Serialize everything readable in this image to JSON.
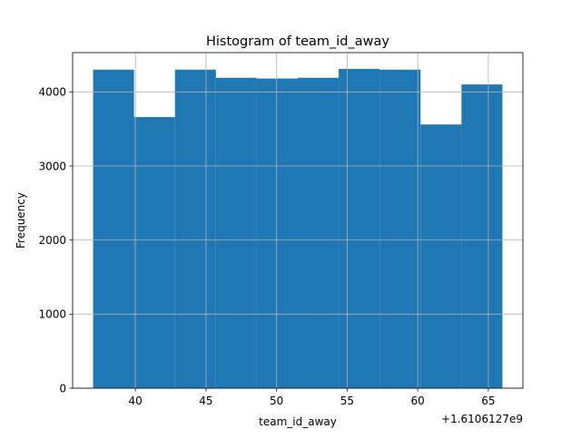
{
  "chart_data": {
    "type": "bar",
    "title": "Histogram of team_id_away",
    "xlabel": "team_id_away",
    "ylabel": "Frequency",
    "x_offset_label": "+1.6106127e9",
    "bin_edges": [
      37,
      39.9,
      42.8,
      45.7,
      48.6,
      51.5,
      54.4,
      57.3,
      60.2,
      63.1,
      66
    ],
    "values": [
      4300,
      3660,
      4300,
      4190,
      4180,
      4190,
      4310,
      4300,
      3560,
      4100
    ],
    "xlim": [
      35.55,
      67.45
    ],
    "ylim": [
      0,
      4530
    ],
    "xticks": [
      40,
      45,
      50,
      55,
      60,
      65
    ],
    "yticks": [
      0,
      1000,
      2000,
      3000,
      4000
    ],
    "grid": true,
    "bar_color": "#1f77b4"
  }
}
